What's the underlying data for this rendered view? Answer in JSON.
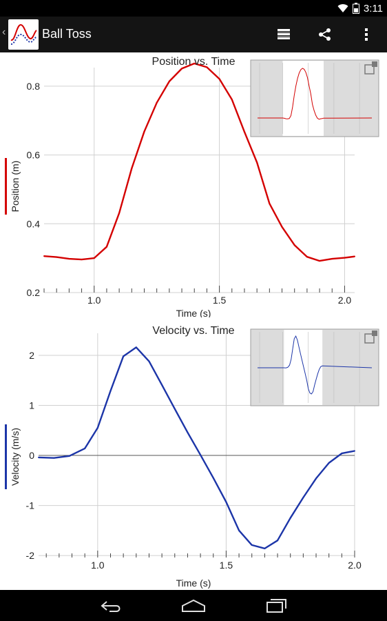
{
  "status_bar": {
    "time": "3:11",
    "icons": [
      "wifi-icon",
      "battery-icon"
    ]
  },
  "action_bar": {
    "title": "Ball Toss",
    "actions": [
      "list-view-icon",
      "share-icon",
      "overflow-menu-icon"
    ]
  },
  "nav_bar": {
    "buttons": [
      "back-icon",
      "home-icon",
      "recent-apps-icon"
    ]
  },
  "chart_data": [
    {
      "type": "line",
      "title": "Position vs. Time",
      "xlabel": "Time (s)",
      "ylabel": "Position (m)",
      "color": "#d40000",
      "xlim": [
        0.8,
        2.04
      ],
      "ylim": [
        0.2,
        0.89
      ],
      "xticks": [
        {
          "v": 1.0,
          "label": "1.0"
        },
        {
          "v": 1.5,
          "label": "1.5"
        },
        {
          "v": 2.0,
          "label": "2.0"
        }
      ],
      "yticks": [
        {
          "v": 0.2,
          "label": "0.2"
        },
        {
          "v": 0.4,
          "label": "0.4"
        },
        {
          "v": 0.6,
          "label": "0.6"
        },
        {
          "v": 0.8,
          "label": "0.8"
        }
      ],
      "zero_line": false,
      "series": [
        {
          "x": [
            0.8,
            0.85,
            0.9,
            0.95,
            1.0,
            1.05,
            1.1,
            1.15,
            1.2,
            1.25,
            1.3,
            1.35,
            1.4,
            1.45,
            1.5,
            1.55,
            1.6,
            1.65,
            1.7,
            1.75,
            1.8,
            1.85,
            1.9,
            1.95,
            2.0,
            2.04
          ],
          "y": [
            0.306,
            0.303,
            0.298,
            0.296,
            0.3,
            0.333,
            0.431,
            0.561,
            0.668,
            0.752,
            0.814,
            0.851,
            0.866,
            0.855,
            0.821,
            0.761,
            0.667,
            0.578,
            0.459,
            0.391,
            0.338,
            0.304,
            0.292,
            0.298,
            0.301,
            0.305
          ]
        }
      ]
    },
    {
      "type": "line",
      "title": "Velocity vs. Time",
      "xlabel": "Time (s)",
      "ylabel": "Velocity (m/s)",
      "color": "#1c35a8",
      "xlim": [
        0.77,
        2.0
      ],
      "ylim": [
        -2.04,
        2.22
      ],
      "xticks": [
        {
          "v": 1.0,
          "label": "1.0"
        },
        {
          "v": 1.5,
          "label": "1.5"
        },
        {
          "v": 2.0,
          "label": "2.0"
        }
      ],
      "yticks": [
        {
          "v": -2,
          "label": "-2"
        },
        {
          "v": -1,
          "label": "-1"
        },
        {
          "v": 0,
          "label": "0"
        },
        {
          "v": 1,
          "label": "1"
        },
        {
          "v": 2,
          "label": "2"
        }
      ],
      "zero_line": true,
      "series": [
        {
          "x": [
            0.77,
            0.83,
            0.89,
            0.95,
            1.0,
            1.05,
            1.1,
            1.15,
            1.2,
            1.25,
            1.3,
            1.35,
            1.4,
            1.45,
            1.5,
            1.55,
            1.6,
            1.65,
            1.7,
            1.75,
            1.8,
            1.85,
            1.9,
            1.95,
            2.0
          ],
          "y": [
            -0.04,
            -0.05,
            -0.01,
            0.14,
            0.55,
            1.29,
            1.98,
            2.16,
            1.88,
            1.41,
            0.93,
            0.46,
            0.01,
            -0.45,
            -0.93,
            -1.5,
            -1.79,
            -1.86,
            -1.7,
            -1.25,
            -0.84,
            -0.46,
            -0.15,
            0.04,
            0.09
          ]
        }
      ]
    }
  ]
}
